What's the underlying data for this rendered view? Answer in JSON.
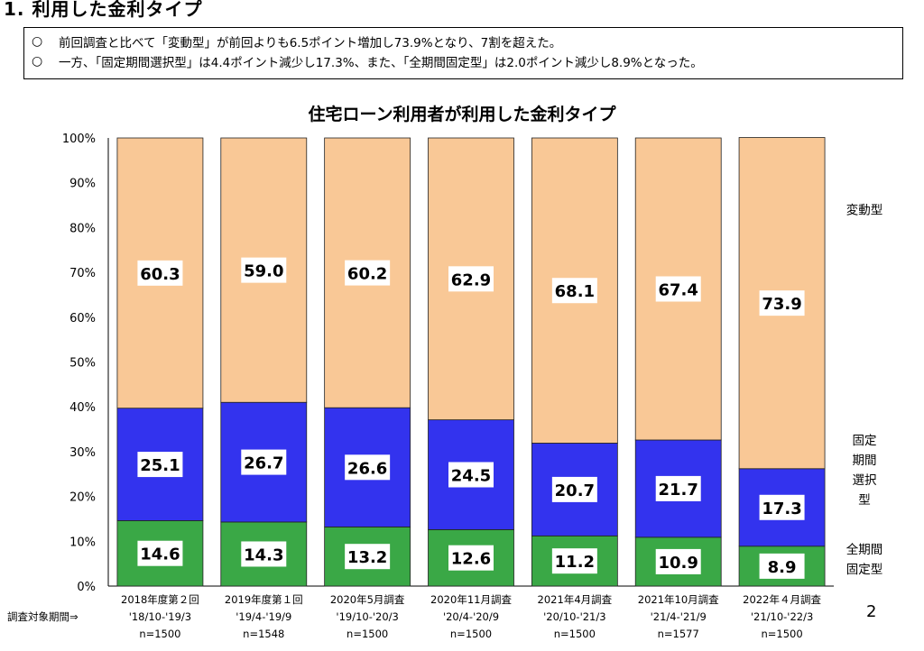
{
  "heading": "1. 利用した金利タイプ",
  "summary": [
    {
      "bullet": "○",
      "text": "前回調査と比べて「変動型」が前回よりも6.5ポイント増加し73.9%となり、7割を超えた。"
    },
    {
      "bullet": "○",
      "text": "一方、「固定期間選択型」は4.4ポイント減少し17.3%、また、「全期間固定型」は2.0ポイント減少し8.9%となった。"
    }
  ],
  "page_number": "2",
  "chart_data": {
    "type": "bar",
    "stacked": true,
    "title": "住宅ローン利用者が利用した金利タイプ",
    "y_ticks": [
      "0%",
      "10%",
      "20%",
      "30%",
      "40%",
      "50%",
      "60%",
      "70%",
      "80%",
      "90%",
      "100%"
    ],
    "ylim": [
      0,
      100
    ],
    "period_prefix": "調査対象期間⇒",
    "categories": [
      {
        "survey": "2018年度第２回",
        "period": "'18/10-'19/3",
        "n": "n=1500"
      },
      {
        "survey": "2019年度第１回",
        "period": "'19/4-'19/9",
        "n": "n=1548"
      },
      {
        "survey": "2020年5月調査",
        "period": "'19/10-'20/3",
        "n": "n=1500"
      },
      {
        "survey": "2020年11月調査",
        "period": "'20/4-'20/9",
        "n": "n=1500"
      },
      {
        "survey": "2021年4月調査",
        "period": "'20/10-'21/3",
        "n": "n=1500"
      },
      {
        "survey": "2021年10月調査",
        "period": "'21/4-'21/9",
        "n": "n=1577"
      },
      {
        "survey": "2022年４月調査",
        "period": "'21/10-'22/3",
        "n": "n=1500"
      }
    ],
    "series": [
      {
        "name": "全期間固定型",
        "color": "#3aa846",
        "values": [
          14.6,
          14.3,
          13.2,
          12.6,
          11.2,
          10.9,
          8.9
        ]
      },
      {
        "name": "固定期間選択型",
        "color": "#3333ee",
        "values": [
          25.1,
          26.7,
          26.6,
          24.5,
          20.7,
          21.7,
          17.3
        ]
      },
      {
        "name": "変動型",
        "color": "#f9c896",
        "values": [
          60.3,
          59.0,
          60.2,
          62.9,
          68.1,
          67.4,
          73.9
        ]
      }
    ],
    "value_labels": [
      [
        "14.6",
        "14.3",
        "13.2",
        "12.6",
        "11.2",
        "10.9",
        "8.9"
      ],
      [
        "25.1",
        "26.7",
        "26.6",
        "24.5",
        "20.7",
        "21.7",
        "17.3"
      ],
      [
        "60.3",
        "59.0",
        "60.2",
        "62.9",
        "68.1",
        "67.4",
        "73.9"
      ]
    ],
    "legend": [
      {
        "series": 2,
        "lines": [
          "変動型"
        ]
      },
      {
        "series": 1,
        "lines": [
          "固定",
          "期間",
          "選択",
          "型"
        ]
      },
      {
        "series": 0,
        "lines": [
          "全期間",
          "固定型"
        ]
      }
    ]
  }
}
